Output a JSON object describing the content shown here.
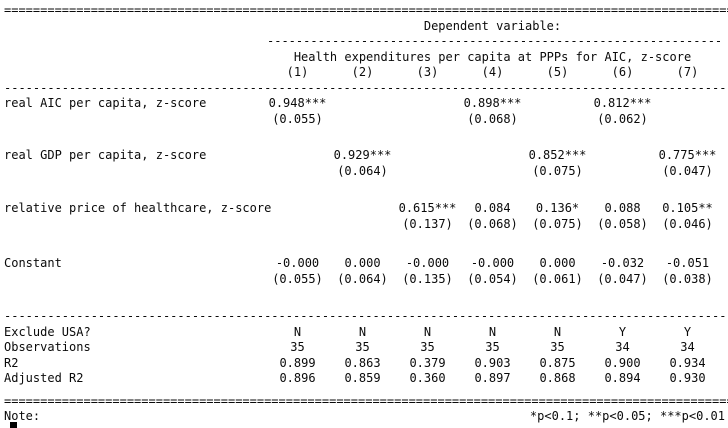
{
  "rules": {
    "double_rule": "======================================================================================================",
    "dashed_full": "------------------------------------------------------------------------------------------------------",
    "dashed_depvar": "---------------------------------------------------------------"
  },
  "table": {
    "dep_var_label": "Dependent variable:",
    "dep_var_name": "Health expenditures per capita at PPPs for AIC, z-score",
    "column_numbers": [
      "(1)",
      "(2)",
      "(3)",
      "(4)",
      "(5)",
      "(6)",
      "(7)"
    ],
    "coefficient_rows": [
      {
        "label": "real AIC per capita, z-score",
        "estimates": [
          "0.948***",
          "",
          "",
          "0.898***",
          "",
          "0.812***",
          ""
        ],
        "std_errors": [
          "(0.055)",
          "",
          "",
          "(0.068)",
          "",
          "(0.062)",
          ""
        ]
      },
      {
        "label": "real GDP per capita, z-score",
        "estimates": [
          "",
          "0.929***",
          "",
          "",
          "0.852***",
          "",
          "0.775***"
        ],
        "std_errors": [
          "",
          "(0.064)",
          "",
          "",
          "(0.075)",
          "",
          "(0.047)"
        ]
      },
      {
        "label": "relative price of healthcare, z-score",
        "estimates": [
          "",
          "",
          "0.615***",
          "0.084",
          "0.136*",
          "0.088",
          "0.105**"
        ],
        "std_errors": [
          "",
          "",
          "(0.137)",
          "(0.068)",
          "(0.075)",
          "(0.058)",
          "(0.046)"
        ]
      },
      {
        "label": "Constant",
        "estimates": [
          "-0.000",
          "0.000",
          "-0.000",
          "-0.000",
          "0.000",
          "-0.032",
          "-0.051"
        ],
        "std_errors": [
          "(0.055)",
          "(0.064)",
          "(0.135)",
          "(0.054)",
          "(0.061)",
          "(0.047)",
          "(0.038)"
        ]
      }
    ],
    "stat_rows": [
      {
        "label": "Exclude USA?",
        "values": [
          "N",
          "N",
          "N",
          "N",
          "N",
          "Y",
          "Y"
        ]
      },
      {
        "label": "Observations",
        "values": [
          "35",
          "35",
          "35",
          "35",
          "35",
          "34",
          "34"
        ]
      },
      {
        "label": "R2",
        "values": [
          "0.899",
          "0.863",
          "0.379",
          "0.903",
          "0.875",
          "0.900",
          "0.934"
        ]
      },
      {
        "label": "Adjusted R2",
        "values": [
          "0.896",
          "0.859",
          "0.360",
          "0.897",
          "0.868",
          "0.894",
          "0.930"
        ]
      }
    ],
    "note_label": "Note:",
    "note_text": "*p<0.1; **p<0.05; ***p<0.01"
  }
}
